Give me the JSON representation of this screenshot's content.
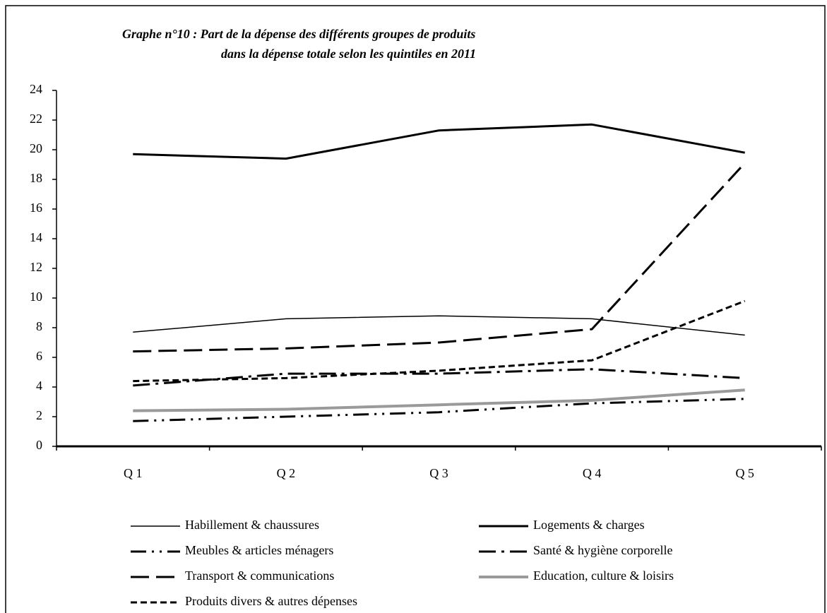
{
  "chart_data": {
    "type": "line",
    "title": "Graphe n°10 : Part de la dépense des différents groupes de produits",
    "subtitle": "dans la dépense totale selon les quintiles en 2011",
    "categories": [
      "Q 1",
      "Q 2",
      "Q 3",
      "Q 4",
      "Q 5"
    ],
    "ylim": [
      0,
      24
    ],
    "yticks": [
      0,
      2,
      4,
      6,
      8,
      10,
      12,
      14,
      16,
      18,
      20,
      22,
      24
    ],
    "series": [
      {
        "name": "Habillement & chaussures",
        "color": "#000000",
        "values": [
          7.7,
          8.6,
          8.8,
          8.6,
          7.5
        ]
      },
      {
        "name": "Logements & charges",
        "color": "#000000",
        "values": [
          19.7,
          19.4,
          21.3,
          21.7,
          19.8
        ]
      },
      {
        "name": "Meubles & articles ménagers",
        "color": "#000000",
        "values": [
          1.7,
          2.0,
          2.3,
          2.9,
          3.2
        ]
      },
      {
        "name": "Santé & hygiène corporelle",
        "color": "#000000",
        "values": [
          4.1,
          4.9,
          4.9,
          5.2,
          4.6
        ]
      },
      {
        "name": "Transport & communications",
        "color": "#000000",
        "values": [
          6.4,
          6.6,
          7.0,
          7.9,
          19.1
        ]
      },
      {
        "name": "Education, culture & loisirs",
        "color": "#9a9a9a",
        "values": [
          2.4,
          2.5,
          2.8,
          3.1,
          3.8
        ]
      },
      {
        "name": "Produits divers & autres dépenses",
        "color": "#000000",
        "values": [
          4.4,
          4.6,
          5.1,
          5.8,
          9.8
        ]
      }
    ]
  }
}
